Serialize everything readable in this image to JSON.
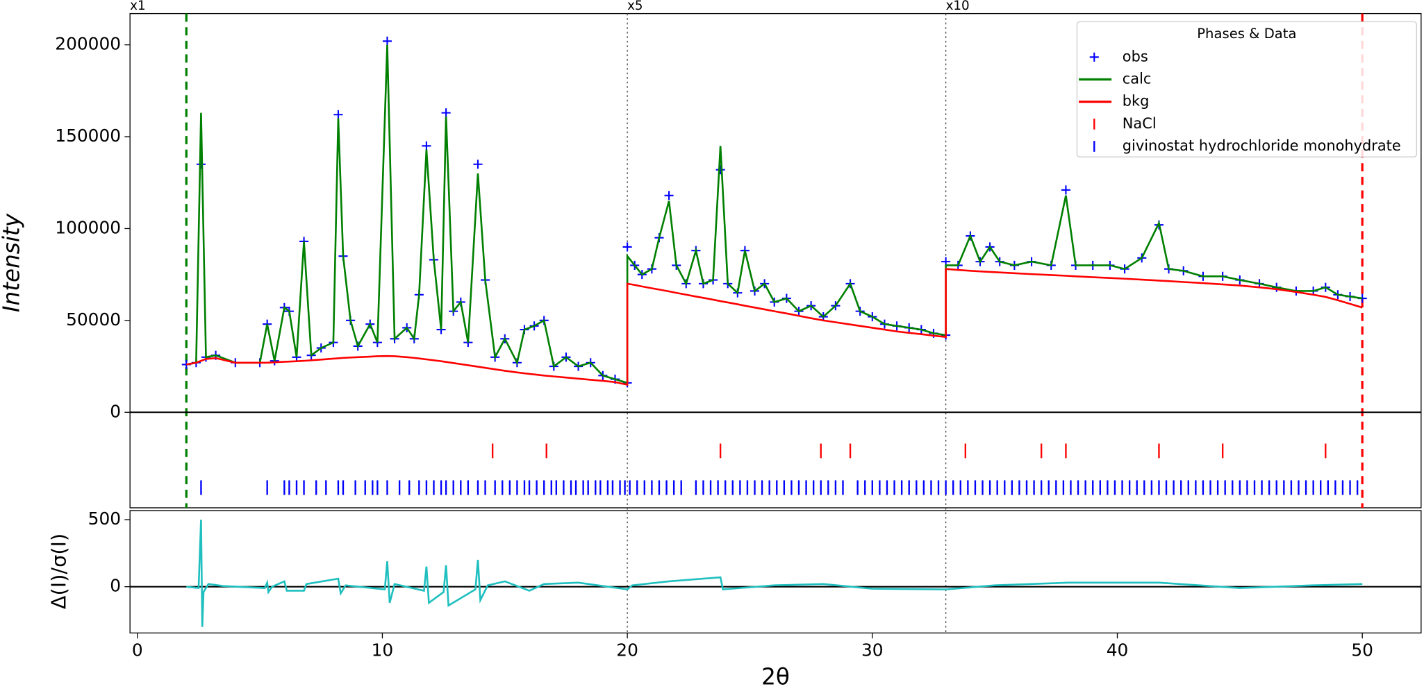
{
  "chart_data": {
    "type": "rietveld",
    "xlabel": "2θ",
    "ylabel": "Intensity",
    "xlim": [
      -0.3,
      52.4
    ],
    "ylim": [
      -52000,
      217000
    ],
    "xticks": [
      0,
      10,
      20,
      30,
      40,
      50
    ],
    "yticks": [
      0,
      50000,
      100000,
      150000,
      200000
    ],
    "limits": [
      2,
      50
    ],
    "limit_colors": [
      "#008000",
      "#ff0000"
    ],
    "annotations": [
      {
        "text": "x1"
      },
      {
        "text": "x5",
        "x": 20
      },
      {
        "text": "x10",
        "x": 33
      }
    ],
    "legend_title": "Phases & Data",
    "x": [
      2.0,
      2.4,
      2.6,
      2.8,
      3.2,
      4.0,
      5.0,
      5.3,
      5.6,
      6.0,
      6.2,
      6.5,
      6.8,
      7.1,
      7.5,
      8.0,
      8.2,
      8.4,
      8.7,
      9.0,
      9.5,
      9.8,
      10.2,
      10.5,
      11.0,
      11.3,
      11.5,
      11.8,
      12.1,
      12.4,
      12.6,
      12.9,
      13.2,
      13.5,
      13.9,
      14.2,
      14.6,
      15.0,
      15.5,
      15.8,
      16.2,
      16.6,
      17.0,
      17.5,
      18.0,
      18.5,
      19.0,
      19.5,
      20.0,
      20.0,
      20.3,
      20.6,
      21.0,
      21.3,
      21.7,
      22.0,
      22.4,
      22.8,
      23.1,
      23.5,
      23.8,
      24.1,
      24.5,
      24.8,
      25.2,
      25.6,
      26.0,
      26.5,
      27.0,
      27.5,
      28.0,
      28.5,
      29.1,
      29.5,
      30.0,
      30.5,
      31.0,
      31.5,
      32.0,
      32.5,
      33.0,
      33.0,
      33.5,
      34.0,
      34.4,
      34.8,
      35.2,
      35.8,
      36.5,
      37.3,
      37.9,
      38.3,
      39.0,
      39.7,
      40.3,
      41.0,
      41.7,
      42.1,
      42.7,
      43.5,
      44.3,
      45.0,
      45.8,
      46.5,
      47.3,
      48.0,
      48.5,
      49.0,
      49.5,
      50.0
    ],
    "series": [
      {
        "name": "obs",
        "color": "#0000ff",
        "marker": "+",
        "values": [
          26000,
          27000,
          135000,
          30000,
          31000,
          27000,
          27000,
          48000,
          28000,
          57000,
          55000,
          30000,
          93000,
          31000,
          35000,
          38000,
          162000,
          85000,
          50000,
          36000,
          48000,
          38000,
          202000,
          40000,
          46000,
          40000,
          64000,
          145000,
          83000,
          45000,
          163000,
          55000,
          60000,
          38000,
          135000,
          72000,
          30000,
          40000,
          27000,
          45000,
          47000,
          50000,
          25000,
          30000,
          25000,
          27000,
          20000,
          18000,
          16000,
          90000,
          80000,
          75000,
          78000,
          95000,
          118000,
          80000,
          70000,
          88000,
          70000,
          72000,
          132000,
          70000,
          65000,
          88000,
          66000,
          70000,
          60000,
          62000,
          55000,
          58000,
          52000,
          58000,
          70000,
          55000,
          52000,
          48000,
          47000,
          46000,
          45000,
          43000,
          42000,
          82000,
          80000,
          96000,
          82000,
          90000,
          82000,
          80000,
          82000,
          80000,
          121000,
          80000,
          80000,
          80000,
          78000,
          84000,
          102000,
          78000,
          77000,
          74000,
          74000,
          72000,
          70000,
          68000,
          66000,
          66000,
          68000,
          64000,
          63000,
          62000
        ]
      },
      {
        "name": "calc",
        "color": "#008000",
        "values": [
          26000,
          27000,
          163000,
          30000,
          31000,
          27000,
          27000,
          48000,
          28000,
          57000,
          55000,
          30000,
          93000,
          31000,
          35000,
          38000,
          160000,
          85000,
          50000,
          36000,
          48000,
          38000,
          200000,
          40000,
          46000,
          40000,
          64000,
          143000,
          83000,
          45000,
          161000,
          55000,
          60000,
          38000,
          130000,
          72000,
          30000,
          40000,
          27000,
          45000,
          47000,
          50000,
          25000,
          30000,
          25000,
          27000,
          20000,
          18000,
          16000,
          85000,
          80000,
          75000,
          78000,
          95000,
          115000,
          80000,
          70000,
          88000,
          70000,
          72000,
          145000,
          70000,
          65000,
          88000,
          66000,
          70000,
          60000,
          62000,
          55000,
          58000,
          52000,
          58000,
          70000,
          55000,
          52000,
          48000,
          47000,
          46000,
          45000,
          43000,
          42000,
          80000,
          80000,
          96000,
          82000,
          90000,
          82000,
          80000,
          82000,
          80000,
          118000,
          80000,
          80000,
          80000,
          78000,
          84000,
          103000,
          78000,
          77000,
          74000,
          74000,
          72000,
          70000,
          68000,
          66000,
          66000,
          68000,
          64000,
          63000,
          62000
        ]
      },
      {
        "name": "bkg",
        "color": "#ff0000",
        "values": [
          26000,
          27000,
          28000,
          29000,
          29500,
          27000,
          27000,
          27000,
          27200,
          27500,
          27600,
          27800,
          28000,
          28300,
          28700,
          29200,
          29400,
          29600,
          29800,
          30000,
          30300,
          30500,
          30600,
          30500,
          30000,
          29600,
          29300,
          28800,
          28300,
          27800,
          27400,
          26800,
          26200,
          25600,
          24800,
          24200,
          23400,
          22600,
          21700,
          21200,
          20600,
          20000,
          19500,
          18900,
          18300,
          17700,
          17100,
          16400,
          15000,
          70000,
          69300,
          68500,
          67500,
          66800,
          65800,
          65000,
          64000,
          63000,
          62300,
          61300,
          60500,
          59800,
          58800,
          58000,
          57000,
          56000,
          55000,
          53800,
          52500,
          51200,
          50000,
          49000,
          47800,
          47000,
          46000,
          45000,
          44000,
          43200,
          42500,
          41700,
          41000,
          78000,
          77500,
          77000,
          76700,
          76400,
          76100,
          75700,
          75200,
          74700,
          74300,
          74000,
          73500,
          73100,
          72700,
          72200,
          71700,
          71400,
          70900,
          70300,
          69600,
          69000,
          68000,
          67000,
          65500,
          64000,
          62800,
          61000,
          59000,
          57000
        ]
      }
    ],
    "phases": [
      {
        "name": "NaCl",
        "color": "#ff0000",
        "tick_y": -21000,
        "positions": [
          14.5,
          16.7,
          23.8,
          27.9,
          29.1,
          33.8,
          36.9,
          37.9,
          41.7,
          44.3,
          48.5
        ]
      },
      {
        "name": "givinostat hydrochloride monohydrate",
        "color": "#0000ff",
        "tick_y": -41000,
        "positions": [
          2.6,
          5.3,
          6.0,
          6.2,
          6.5,
          6.8,
          7.3,
          7.7,
          8.2,
          8.4,
          8.9,
          9.3,
          9.6,
          9.8,
          10.2,
          10.7,
          11.1,
          11.5,
          11.8,
          12.1,
          12.4,
          12.6,
          12.9,
          13.2,
          13.5,
          13.9,
          14.2,
          14.6,
          14.9,
          15.2,
          15.5,
          15.8,
          16.0,
          16.3,
          16.6,
          16.9,
          17.1,
          17.4,
          17.7,
          17.9,
          18.2,
          18.4,
          18.7,
          18.9,
          19.2,
          19.4,
          19.7,
          19.9,
          20.1,
          20.4,
          20.7,
          21.0,
          21.3,
          21.6,
          21.9,
          22.2,
          22.8,
          23.1,
          23.4,
          23.7,
          24.0,
          24.3,
          24.6,
          24.9,
          25.2,
          25.5,
          25.8,
          26.1,
          26.4,
          26.7,
          27.0,
          27.3,
          27.6,
          27.9,
          28.2,
          28.5,
          28.8,
          29.4,
          29.7,
          30.0,
          30.3,
          30.6,
          30.9,
          31.2,
          31.5,
          31.8,
          32.1,
          32.4,
          32.7,
          33.0,
          33.3,
          33.6,
          33.9,
          34.2,
          34.5,
          34.8,
          35.1,
          35.4,
          35.7,
          36.0,
          36.3,
          36.6,
          36.9,
          37.2,
          37.5,
          37.8,
          38.1,
          38.4,
          38.7,
          39.0,
          39.3,
          39.6,
          39.9,
          40.2,
          40.5,
          40.8,
          41.1,
          41.4,
          41.7,
          42.0,
          42.3,
          42.6,
          42.9,
          43.2,
          43.5,
          43.8,
          44.1,
          44.4,
          44.7,
          45.0,
          45.3,
          45.6,
          45.9,
          46.2,
          46.5,
          46.8,
          47.1,
          47.4,
          47.7,
          48.0,
          48.3,
          48.6,
          48.9,
          49.2,
          49.5,
          49.8
        ]
      }
    ],
    "diff": {
      "ylabel": "Δ(I)/σ(I)",
      "color": "#1fbfbf",
      "ylim": [
        -345,
        568
      ],
      "yticks": [
        0,
        500
      ],
      "x": [
        2.0,
        2.5,
        2.6,
        2.65,
        2.7,
        2.9,
        3.5,
        5.2,
        5.3,
        5.35,
        5.5,
        6.0,
        6.1,
        6.8,
        6.9,
        8.2,
        8.3,
        8.5,
        10.1,
        10.2,
        10.3,
        10.5,
        11.7,
        11.8,
        11.9,
        12.5,
        12.6,
        12.7,
        13.8,
        13.9,
        14.0,
        14.3,
        15.0,
        16.0,
        16.6,
        18.0,
        20.0,
        20.2,
        21.7,
        23.8,
        23.9,
        26.0,
        28.0,
        30.0,
        33.0,
        35.0,
        38.0,
        41.7,
        45.0,
        48.0,
        50.0
      ],
      "values": [
        0,
        -10,
        500,
        -300,
        -40,
        20,
        5,
        -10,
        30,
        -40,
        0,
        40,
        -30,
        -30,
        20,
        60,
        -50,
        10,
        -20,
        190,
        -120,
        20,
        -30,
        150,
        -120,
        -40,
        160,
        -140,
        -20,
        200,
        -100,
        10,
        40,
        -30,
        20,
        30,
        -20,
        10,
        40,
        70,
        -20,
        10,
        20,
        -15,
        -20,
        10,
        30,
        30,
        -10,
        10,
        20
      ]
    }
  }
}
